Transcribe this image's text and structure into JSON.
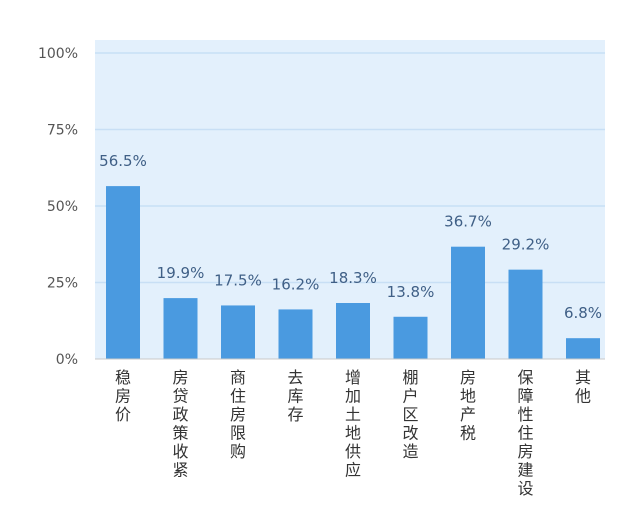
{
  "chart_data": {
    "type": "bar",
    "title": "",
    "xlabel": "",
    "ylabel": "",
    "categories": [
      "稳房价",
      "房贷政策收紧",
      "商住房限购",
      "去库存",
      "增加土地供应",
      "棚户区改造",
      "房地产税",
      "保障性住房建设",
      "其他"
    ],
    "values": [
      56.5,
      19.9,
      17.5,
      16.2,
      18.3,
      13.8,
      36.7,
      29.2,
      6.8
    ],
    "value_labels": [
      "56.5%",
      "19.9%",
      "17.5%",
      "16.2%",
      "18.3%",
      "13.8%",
      "36.7%",
      "29.2%",
      "6.8%"
    ],
    "yticks": [
      0,
      25,
      50,
      75,
      100
    ],
    "ytick_labels": [
      "0%",
      "25%",
      "50%",
      "75%",
      "100%"
    ],
    "ylim": [
      0,
      100
    ],
    "grid": true,
    "legend": "none",
    "colors": {
      "bar": "#4a9ae0",
      "plot_bg": "#e3f0fc",
      "grid": "#c8dff5",
      "baseline": "#c9c9c9",
      "value_text": "#3f5f86",
      "tick_text": "#555555",
      "category_text": "#333333"
    }
  }
}
